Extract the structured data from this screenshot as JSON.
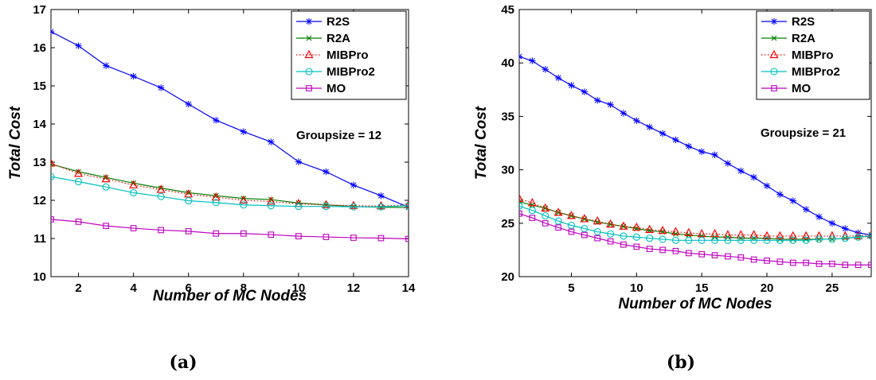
{
  "colors": {
    "R2S": "#0000ff",
    "R2A": "#007f00",
    "MIBPro": "#ff0000",
    "MIBPro2": "#00bfbf",
    "MO": "#bf00bf"
  },
  "chart_data": [
    {
      "type": "line",
      "caption": "(a)",
      "annotation": "Groupsize = 12",
      "xlabel": "Number of MC Nodes",
      "ylabel": "Total Cost",
      "xlim": [
        1,
        14
      ],
      "ylim": [
        10,
        17
      ],
      "xticks": [
        2,
        4,
        6,
        8,
        10,
        12,
        14
      ],
      "yticks": [
        10,
        11,
        12,
        13,
        14,
        15,
        16,
        17
      ],
      "legend_position": "top-right",
      "grid": false,
      "x": [
        1,
        2,
        3,
        4,
        5,
        6,
        7,
        8,
        9,
        10,
        11,
        12,
        13,
        14
      ],
      "series": [
        {
          "name": "R2S",
          "marker": "asterisk",
          "line": "solid",
          "values": [
            16.42,
            16.05,
            15.53,
            15.25,
            14.95,
            14.52,
            14.1,
            13.8,
            13.53,
            13.01,
            12.75,
            12.4,
            12.12,
            11.82
          ]
        },
        {
          "name": "R2A",
          "marker": "x",
          "line": "solid",
          "values": [
            12.95,
            12.75,
            12.6,
            12.45,
            12.32,
            12.2,
            12.12,
            12.05,
            12.02,
            11.93,
            11.88,
            11.84,
            11.82,
            11.81
          ]
        },
        {
          "name": "MIBPro",
          "marker": "triangle",
          "line": "dotted",
          "values": [
            12.97,
            12.7,
            12.56,
            12.4,
            12.28,
            12.16,
            12.08,
            12.0,
            11.97,
            11.91,
            11.88,
            11.86,
            11.85,
            11.88
          ]
        },
        {
          "name": "MIBPro2",
          "marker": "circle",
          "line": "solid",
          "values": [
            12.62,
            12.49,
            12.35,
            12.2,
            12.1,
            11.99,
            11.94,
            11.88,
            11.86,
            11.84,
            11.84,
            11.83,
            11.83,
            11.86
          ]
        },
        {
          "name": "MO",
          "marker": "square",
          "line": "solid",
          "values": [
            11.5,
            11.44,
            11.33,
            11.27,
            11.22,
            11.19,
            11.13,
            11.13,
            11.1,
            11.06,
            11.04,
            11.02,
            11.01,
            10.99
          ]
        }
      ]
    },
    {
      "type": "line",
      "caption": "(b)",
      "annotation": "Groupsize = 21",
      "xlabel": "Number of MC Nodes",
      "ylabel": "Total Cost",
      "xlim": [
        1,
        28
      ],
      "ylim": [
        20,
        45
      ],
      "xticks": [
        5,
        10,
        15,
        20,
        25
      ],
      "yticks": [
        20,
        25,
        30,
        35,
        40,
        45
      ],
      "legend_position": "top-right",
      "grid": false,
      "x": [
        1,
        2,
        3,
        4,
        5,
        6,
        7,
        8,
        9,
        10,
        11,
        12,
        13,
        14,
        15,
        16,
        17,
        18,
        19,
        20,
        21,
        22,
        23,
        24,
        25,
        26,
        27,
        28
      ],
      "series": [
        {
          "name": "R2S",
          "marker": "asterisk",
          "line": "solid",
          "values": [
            40.6,
            40.2,
            39.4,
            38.6,
            37.9,
            37.3,
            36.5,
            36.1,
            35.3,
            34.6,
            34.0,
            33.4,
            32.8,
            32.2,
            31.7,
            31.4,
            30.6,
            29.9,
            29.3,
            28.5,
            27.7,
            27.1,
            26.3,
            25.6,
            25.0,
            24.5,
            24.1,
            23.9
          ]
        },
        {
          "name": "R2A",
          "marker": "x",
          "line": "solid",
          "values": [
            27.0,
            26.7,
            26.4,
            26.0,
            25.7,
            25.4,
            25.1,
            24.9,
            24.7,
            24.5,
            24.3,
            24.2,
            24.0,
            23.9,
            23.8,
            23.7,
            23.7,
            23.6,
            23.6,
            23.6,
            23.5,
            23.5,
            23.5,
            23.5,
            23.5,
            23.6,
            23.7,
            23.8
          ]
        },
        {
          "name": "MIBPro",
          "marker": "triangle",
          "line": "dotted",
          "values": [
            27.3,
            26.9,
            26.4,
            26.0,
            25.7,
            25.4,
            25.2,
            24.9,
            24.7,
            24.6,
            24.4,
            24.3,
            24.2,
            24.1,
            24.0,
            24.0,
            23.9,
            23.9,
            23.9,
            23.8,
            23.8,
            23.8,
            23.8,
            23.8,
            23.8,
            23.8,
            23.8,
            23.9
          ]
        },
        {
          "name": "MIBPro2",
          "marker": "circle",
          "line": "solid",
          "values": [
            26.6,
            26.2,
            25.7,
            25.2,
            24.8,
            24.5,
            24.2,
            24.0,
            23.8,
            23.7,
            23.6,
            23.5,
            23.4,
            23.4,
            23.4,
            23.4,
            23.4,
            23.4,
            23.4,
            23.4,
            23.4,
            23.4,
            23.4,
            23.5,
            23.5,
            23.6,
            23.7,
            23.8
          ]
        },
        {
          "name": "MO",
          "marker": "square",
          "line": "solid",
          "values": [
            25.9,
            25.5,
            25.0,
            24.6,
            24.2,
            23.9,
            23.6,
            23.3,
            23.0,
            22.8,
            22.6,
            22.5,
            22.4,
            22.2,
            22.1,
            22.0,
            21.9,
            21.8,
            21.6,
            21.5,
            21.4,
            21.3,
            21.3,
            21.2,
            21.2,
            21.1,
            21.1,
            21.1
          ]
        }
      ]
    }
  ]
}
